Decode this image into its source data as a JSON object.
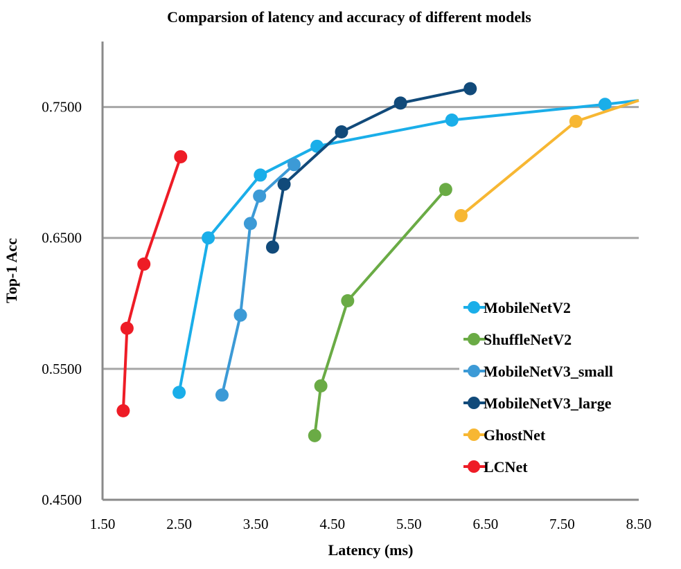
{
  "chart_data": {
    "type": "line",
    "title": "Comparsion of latency and accuracy of different models",
    "xlabel": "Latency (ms)",
    "ylabel": "Top-1 Acc",
    "xlim": [
      1.5,
      8.5
    ],
    "ylim": [
      0.45,
      0.8
    ],
    "xticks": [
      "1.50",
      "2.50",
      "3.50",
      "4.50",
      "5.50",
      "6.50",
      "7.50",
      "8.50"
    ],
    "yticks": [
      "0.4500",
      "0.5500",
      "0.6500",
      "0.7500"
    ],
    "legend_position": "right",
    "series": [
      {
        "name": "MobileNetV2",
        "color": "#1AAEE9",
        "points": [
          [
            2.5,
            0.532
          ],
          [
            2.88,
            0.65
          ],
          [
            3.56,
            0.698
          ],
          [
            4.3,
            0.72
          ],
          [
            6.06,
            0.74
          ],
          [
            8.06,
            0.752
          ],
          [
            8.5,
            0.755
          ]
        ]
      },
      {
        "name": "ShuffleNetV2",
        "color": "#6AAB45",
        "points": [
          [
            4.27,
            0.499
          ],
          [
            4.35,
            0.537
          ],
          [
            4.7,
            0.602
          ],
          [
            5.98,
            0.687
          ]
        ]
      },
      {
        "name": "MobileNetV3_small",
        "color": "#3C9AD6",
        "points": [
          [
            3.06,
            0.53
          ],
          [
            3.3,
            0.591
          ],
          [
            3.43,
            0.661
          ],
          [
            3.55,
            0.682
          ],
          [
            4.0,
            0.706
          ]
        ]
      },
      {
        "name": "MobileNetV3_large",
        "color": "#114A7A",
        "points": [
          [
            3.72,
            0.643
          ],
          [
            3.87,
            0.691
          ],
          [
            4.62,
            0.731
          ],
          [
            5.39,
            0.753
          ],
          [
            6.3,
            0.764
          ]
        ]
      },
      {
        "name": "GhostNet",
        "color": "#F7B733",
        "points": [
          [
            6.18,
            0.667
          ],
          [
            7.68,
            0.739
          ],
          [
            8.5,
            0.755
          ]
        ]
      },
      {
        "name": "LCNet",
        "color": "#EE1C26",
        "points": [
          [
            1.77,
            0.518
          ],
          [
            1.82,
            0.581
          ],
          [
            2.04,
            0.63
          ],
          [
            2.52,
            0.712
          ]
        ]
      }
    ]
  }
}
